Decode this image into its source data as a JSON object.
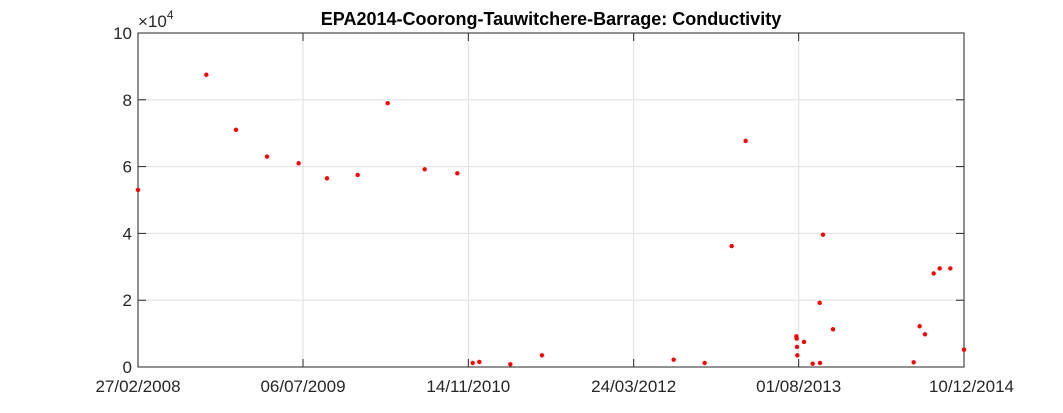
{
  "chart_data": {
    "type": "scatter",
    "title": "EPA2014-Coorong-Tauwitchere-Barrage: Conductivity",
    "xlabel": "",
    "ylabel": "",
    "exponent_prefix": "×10",
    "exponent_power": "4",
    "ylim": [
      0,
      10
    ],
    "ytick_values": [
      0,
      2,
      4,
      6,
      8,
      10
    ],
    "ytick_labels": [
      "0",
      "2",
      "4",
      "6",
      "8",
      "10"
    ],
    "xlim": [
      "2008-02-27",
      "2014-12-10"
    ],
    "xtick_values": [
      "2008-02-27",
      "2009-07-06",
      "2010-11-14",
      "2012-03-24",
      "2013-08-01",
      "2014-12-10"
    ],
    "xtick_labels": [
      "27/02/2008",
      "06/07/2009",
      "14/11/2010",
      "24/03/2012",
      "01/08/2013",
      "10/12/2014"
    ],
    "grid": true,
    "marker_color": "#ff0000",
    "x": [
      "2008-02-27",
      "2008-09-19",
      "2008-12-17",
      "2009-03-20",
      "2009-06-23",
      "2009-09-16",
      "2009-12-17",
      "2010-03-17",
      "2010-07-06",
      "2010-10-12",
      "2010-11-27",
      "2010-12-17",
      "2011-03-20",
      "2011-06-23",
      "2012-07-22",
      "2012-10-23",
      "2013-01-12",
      "2013-02-23",
      "2013-07-25",
      "2013-07-26",
      "2013-07-27",
      "2013-07-28",
      "2013-08-17",
      "2013-09-12",
      "2013-10-03",
      "2013-10-04",
      "2013-10-13",
      "2013-11-12",
      "2014-07-12",
      "2014-07-30",
      "2014-08-15",
      "2014-09-10",
      "2014-09-28",
      "2014-10-30",
      "2014-12-10"
    ],
    "y": [
      5.3,
      8.75,
      7.1,
      6.3,
      6.1,
      5.65,
      5.75,
      7.9,
      5.92,
      5.8,
      0.12,
      0.15,
      0.08,
      0.35,
      0.22,
      0.12,
      3.62,
      6.77,
      0.92,
      0.85,
      0.6,
      0.35,
      0.75,
      0.1,
      1.92,
      0.12,
      3.96,
      1.13,
      0.14,
      1.22,
      0.98,
      2.8,
      2.95,
      2.95,
      0.52
    ]
  }
}
